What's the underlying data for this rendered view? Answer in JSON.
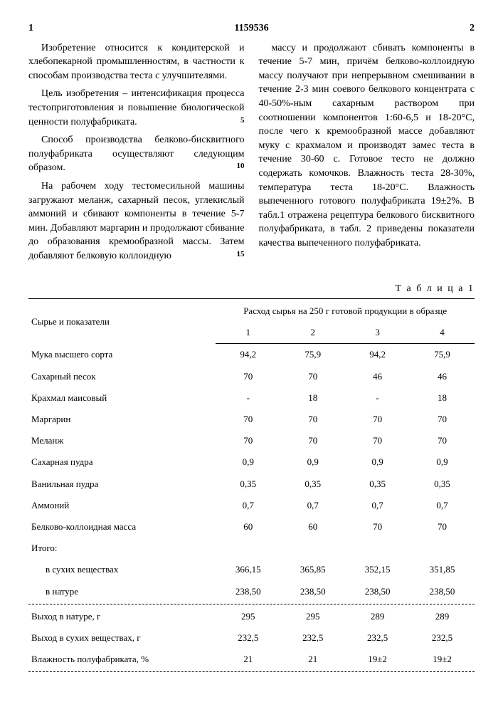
{
  "doc_number": "1159536",
  "page_left": "1",
  "page_right": "2",
  "left_paragraphs": [
    "Изобретение относится к кондитерской и хлебопекарной промышленностям, в частности к способам производства теста с улучшителями.",
    "Цель изобретения – интенсификация процесса тестоприготовления и повышение биологической ценности полуфабриката.",
    "Способ производства белково-бисквитного полуфабриката осуществляют следующим образом.",
    "На рабочем ходу тестомесильной машины загружают меланж, сахарный песок, углекислый аммоний и сбивают компоненты в течение 5-7 мин. Добавляют маргарин и продолжают сбивание до образования кремообразной массы. Затем добавляют белковую коллоидную"
  ],
  "right_paragraphs": [
    "массу и продолжают сбивать компоненты в течение 5-7 мин, причём белково-коллоидную массу получают при непрерывном смешивании в течение 2-3 мин соевого белкового концентрата с 40-50%-ным сахарным раствором при соотношении компонентов 1:60-6,5 и 18-20°С, после чего к кремообразной массе добавляют муку с крахмалом и производят замес теста в течение 30-60 с. Готовое тесто не должно содержать комочков. Влажность теста 28-30%, температура теста 18-20°С. Влажность выпеченного готового полуфабриката 19±2%. В табл.1 отражена рецептура белкового бисквитного полуфабриката, в табл. 2 приведены показатели качества выпеченного полуфабриката."
  ],
  "line_markers": {
    "l5": "5",
    "l10": "10",
    "l15": "15"
  },
  "table_caption": "Т а б л и ц а  1",
  "table": {
    "header_label": "Сырье и показатели",
    "header_group": "Расход сырья на 250 г готовой продукции в образце",
    "col_nums": [
      "1",
      "2",
      "3",
      "4"
    ],
    "rows": [
      {
        "label": "Мука высшего сорта",
        "v": [
          "94,2",
          "75,9",
          "94,2",
          "75,9"
        ]
      },
      {
        "label": "Сахарный песок",
        "v": [
          "70",
          "70",
          "46",
          "46"
        ]
      },
      {
        "label": "Крахмал маисовый",
        "v": [
          "-",
          "18",
          "-",
          "18"
        ]
      },
      {
        "label": "Маргарин",
        "v": [
          "70",
          "70",
          "70",
          "70"
        ]
      },
      {
        "label": "Меланж",
        "v": [
          "70",
          "70",
          "70",
          "70"
        ]
      },
      {
        "label": "Сахарная пудра",
        "v": [
          "0,9",
          "0,9",
          "0,9",
          "0,9"
        ]
      },
      {
        "label": "Ванильная пудра",
        "v": [
          "0,35",
          "0,35",
          "0,35",
          "0,35"
        ]
      },
      {
        "label": "Аммоний",
        "v": [
          "0,7",
          "0,7",
          "0,7",
          "0,7"
        ]
      },
      {
        "label": "Белково-коллоидная масса",
        "v": [
          "60",
          "60",
          "70",
          "70"
        ]
      }
    ],
    "subtotal_label": "Итого:",
    "subtotal_rows": [
      {
        "label": "    в сухих веществах",
        "v": [
          "366,15",
          "365,85",
          "352,15",
          "351,85"
        ]
      },
      {
        "label": "    в натуре",
        "v": [
          "238,50",
          "238,50",
          "238,50",
          "238,50"
        ]
      }
    ],
    "bottom_rows": [
      {
        "label": "Выход в натуре, г",
        "v": [
          "295",
          "295",
          "289",
          "289"
        ]
      },
      {
        "label": "Выход в сухих веществах, г",
        "v": [
          "232,5",
          "232,5",
          "232,5",
          "232,5"
        ]
      },
      {
        "label": "Влажность полуфабриката, %",
        "v": [
          "21",
          "21",
          "19±2",
          "19±2"
        ]
      }
    ]
  }
}
